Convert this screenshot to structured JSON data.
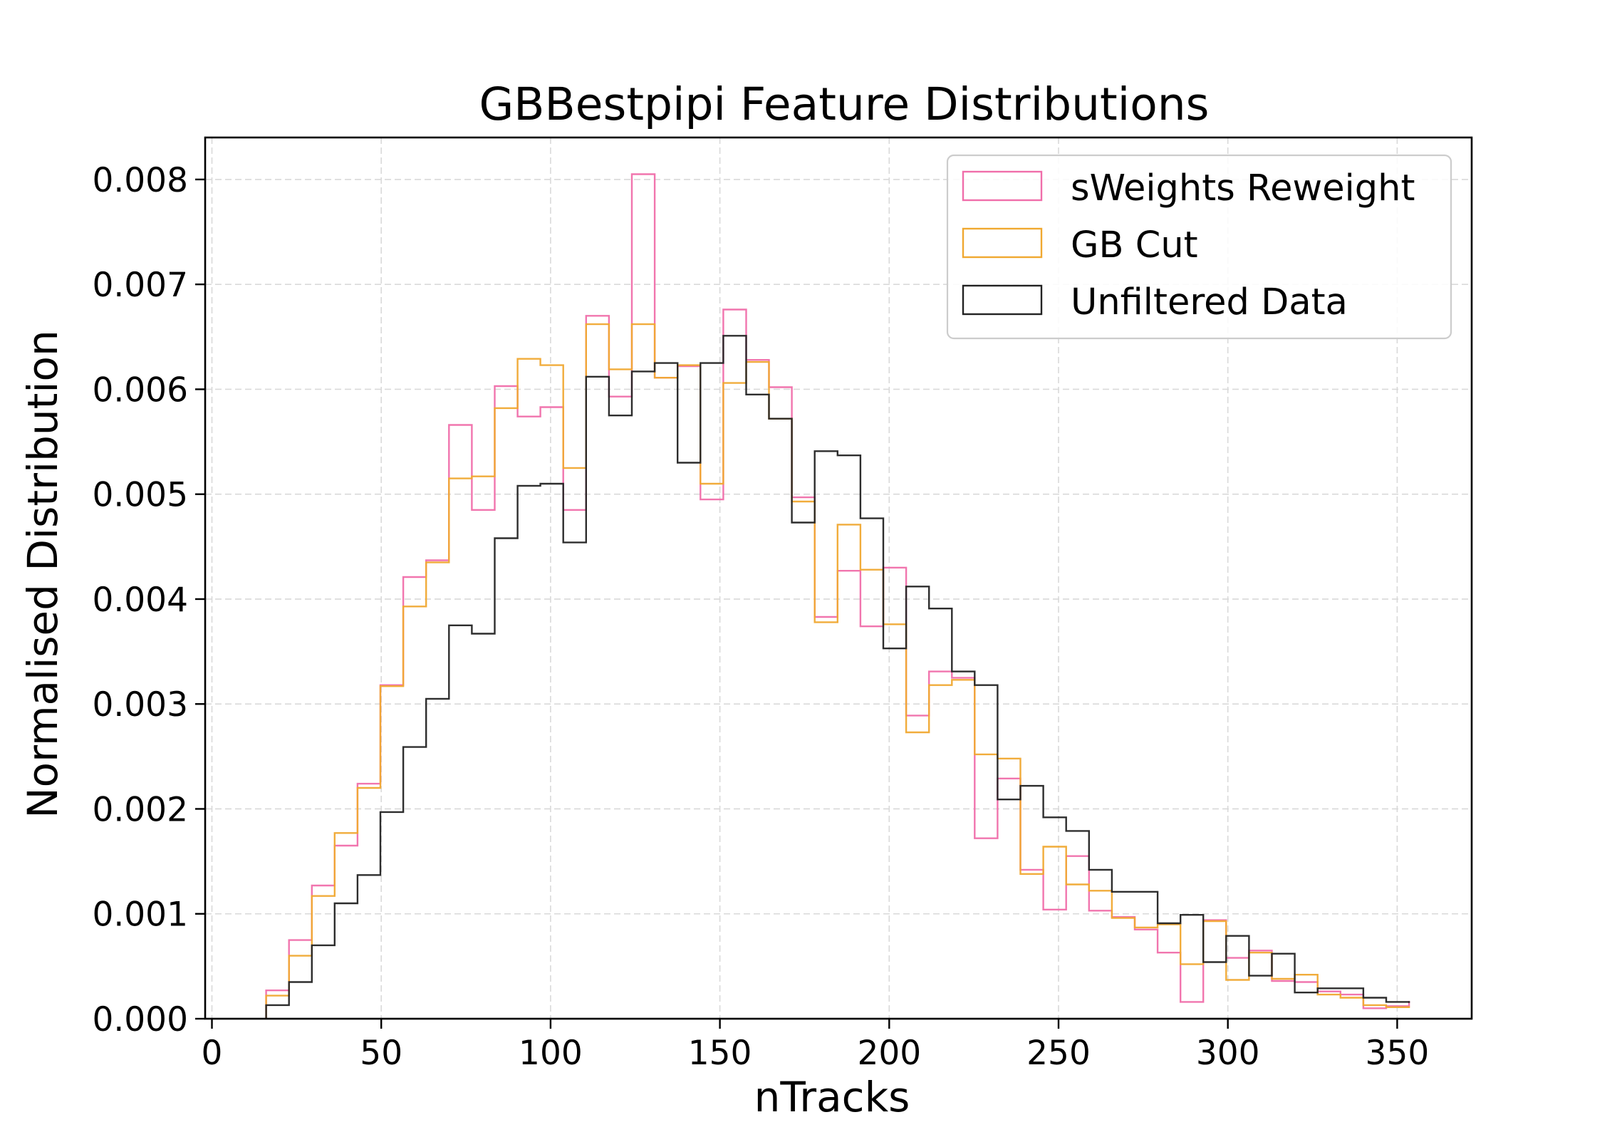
{
  "chart_data": {
    "type": "histogram",
    "title": "GBBestpipi Feature Distributions",
    "xlabel": "nTracks",
    "ylabel": "Normalised Distribution",
    "xlim": [
      -2,
      372
    ],
    "ylim": [
      0,
      0.0084
    ],
    "xticks": [
      0,
      50,
      100,
      150,
      200,
      250,
      300,
      350
    ],
    "xtick_labels": [
      "0",
      "50",
      "100",
      "150",
      "200",
      "250",
      "300",
      "350"
    ],
    "yticks": [
      0,
      0.001,
      0.002,
      0.003,
      0.004,
      0.005,
      0.006,
      0.007,
      0.008
    ],
    "ytick_labels": [
      "0.000",
      "0.001",
      "0.002",
      "0.003",
      "0.004",
      "0.005",
      "0.006",
      "0.007",
      "0.008"
    ],
    "grid": true,
    "legend_position": "upper-right",
    "bin_edges": [
      16,
      22.75,
      29.5,
      36.25,
      43,
      49.75,
      56.5,
      63.25,
      70,
      76.75,
      83.5,
      90.25,
      97,
      103.75,
      110.5,
      117.25,
      124,
      130.75,
      137.5,
      144.25,
      151,
      157.75,
      164.5,
      171.25,
      178,
      184.75,
      191.5,
      198.25,
      205,
      211.75,
      218.5,
      225.25,
      232,
      238.75,
      245.5,
      252.25,
      259,
      265.75,
      272.5,
      279.25,
      286,
      292.75,
      299.5,
      306.25,
      313,
      319.75,
      326.5,
      333.25,
      340,
      346.75,
      353.5
    ],
    "series": [
      {
        "name": "sWeights Reweight",
        "color": "#f06eaa",
        "values": [
          0.00027,
          0.00075,
          0.00127,
          0.00165,
          0.00224,
          0.00318,
          0.00421,
          0.00437,
          0.00566,
          0.00485,
          0.00603,
          0.00574,
          0.00583,
          0.00485,
          0.0067,
          0.00593,
          0.00805,
          0.00611,
          0.00622,
          0.00495,
          0.00676,
          0.00628,
          0.00602,
          0.00497,
          0.00383,
          0.00427,
          0.00374,
          0.0043,
          0.00289,
          0.00331,
          0.00325,
          0.00172,
          0.00229,
          0.00142,
          0.00104,
          0.00155,
          0.00103,
          0.00097,
          0.00085,
          0.00063,
          0.00016,
          0.00094,
          0.00058,
          0.00065,
          0.00036,
          0.00035,
          0.00026,
          0.00023,
          0.0001,
          0.00012,
          0.00017
        ]
      },
      {
        "name": "GB Cut",
        "color": "#f0a830",
        "values": [
          0.00022,
          0.0006,
          0.00117,
          0.00177,
          0.0022,
          0.00317,
          0.00393,
          0.00435,
          0.00515,
          0.00517,
          0.00582,
          0.00629,
          0.00623,
          0.00525,
          0.00662,
          0.00619,
          0.00662,
          0.00611,
          0.00623,
          0.0051,
          0.00606,
          0.00626,
          0.00572,
          0.00493,
          0.00378,
          0.00471,
          0.00428,
          0.00376,
          0.00273,
          0.00318,
          0.00323,
          0.00252,
          0.00248,
          0.00138,
          0.00164,
          0.00128,
          0.00122,
          0.00096,
          0.00087,
          0.0009,
          0.00052,
          0.00093,
          0.00037,
          0.00063,
          0.00038,
          0.00042,
          0.00023,
          0.0002,
          0.00013,
          0.00011,
          0.00012
        ]
      },
      {
        "name": "Unfiltered Data",
        "color": "#222222",
        "values": [
          0.00013,
          0.00035,
          0.0007,
          0.0011,
          0.00137,
          0.00197,
          0.00259,
          0.00305,
          0.00375,
          0.00367,
          0.00458,
          0.00508,
          0.0051,
          0.00454,
          0.00612,
          0.00575,
          0.00617,
          0.00625,
          0.0053,
          0.00625,
          0.00651,
          0.00595,
          0.00572,
          0.00473,
          0.00541,
          0.00537,
          0.00477,
          0.00353,
          0.00412,
          0.00391,
          0.00331,
          0.00318,
          0.00209,
          0.00222,
          0.00192,
          0.00179,
          0.00142,
          0.00121,
          0.00121,
          0.00091,
          0.00099,
          0.00054,
          0.00079,
          0.00041,
          0.00062,
          0.00025,
          0.00029,
          0.00029,
          0.0002,
          0.00016,
          0.00015
        ]
      }
    ]
  }
}
